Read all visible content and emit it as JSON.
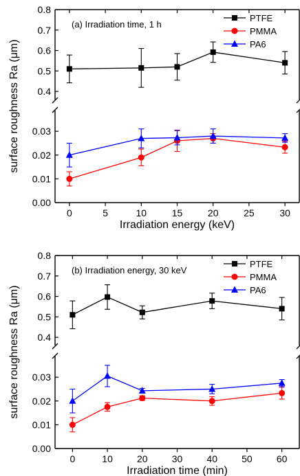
{
  "chart_data": [
    {
      "type": "line",
      "annotation": "(a) Irradiation time, 1 h",
      "xlabel": "Irradiation energy (keV)",
      "ylabel": "surface roughness Ra (μm)",
      "x_ticks": [
        "0",
        "5",
        "10",
        "15",
        "20",
        "25",
        "30"
      ],
      "y_ticks_upper": [
        "0.4",
        "0.5",
        "0.6",
        "0.7",
        "0.8"
      ],
      "y_ticks_lower": [
        "0.00",
        "0.01",
        "0.02",
        "0.03"
      ],
      "xlim": [
        -2,
        32
      ],
      "ylim_upper": [
        0.36,
        0.8
      ],
      "ylim_lower": [
        0,
        0.039
      ],
      "broken_y_axis": true,
      "legend_position": "top-right",
      "x": [
        0,
        10,
        15,
        20,
        30
      ],
      "series": [
        {
          "name": "PTFE",
          "color": "#000000",
          "marker": "square",
          "values": [
            0.51,
            0.515,
            0.52,
            0.592,
            0.54
          ],
          "errors": [
            0.068,
            0.095,
            0.065,
            0.05,
            0.055
          ]
        },
        {
          "name": "PMMA",
          "color": "#ff0000",
          "marker": "circle",
          "values": [
            0.01,
            0.019,
            0.026,
            0.027,
            0.0233
          ],
          "errors": [
            0.003,
            0.0035,
            0.0045,
            0.002,
            0.0025
          ]
        },
        {
          "name": "PA6",
          "color": "#0000ff",
          "marker": "triangle",
          "values": [
            0.02,
            0.027,
            0.0273,
            0.028,
            0.0272
          ],
          "errors": [
            0.005,
            0.004,
            0.003,
            0.003,
            0.0018
          ]
        }
      ]
    },
    {
      "type": "line",
      "annotation": "(b) Irradiation energy, 30 keV",
      "xlabel": "Irradiation time (min)",
      "ylabel": "surface roughness Ra (μm)",
      "x_ticks": [
        "0",
        "10",
        "20",
        "30",
        "40",
        "50",
        "60"
      ],
      "y_ticks_upper": [
        "0.4",
        "0.5",
        "0.6",
        "0.7",
        "0.8"
      ],
      "y_ticks_lower": [
        "0.00",
        "0.01",
        "0.02",
        "0.03"
      ],
      "xlim": [
        -5,
        65
      ],
      "ylim_upper": [
        0.36,
        0.8
      ],
      "ylim_lower": [
        0,
        0.039
      ],
      "broken_y_axis": true,
      "legend_position": "top-right",
      "x": [
        0,
        10,
        20,
        40,
        60
      ],
      "series": [
        {
          "name": "PTFE",
          "color": "#000000",
          "marker": "square",
          "values": [
            0.51,
            0.597,
            0.522,
            0.578,
            0.54
          ],
          "errors": [
            0.068,
            0.06,
            0.032,
            0.038,
            0.055
          ]
        },
        {
          "name": "PMMA",
          "color": "#ff0000",
          "marker": "circle",
          "values": [
            0.01,
            0.0175,
            0.0212,
            0.02,
            0.0233
          ],
          "errors": [
            0.003,
            0.0018,
            0.001,
            0.0018,
            0.0025
          ]
        },
        {
          "name": "PA6",
          "color": "#0000ff",
          "marker": "triangle",
          "values": [
            0.02,
            0.0305,
            0.0243,
            0.025,
            0.0275
          ],
          "errors": [
            0.005,
            0.0045,
            0.001,
            0.002,
            0.0015
          ]
        }
      ]
    }
  ]
}
